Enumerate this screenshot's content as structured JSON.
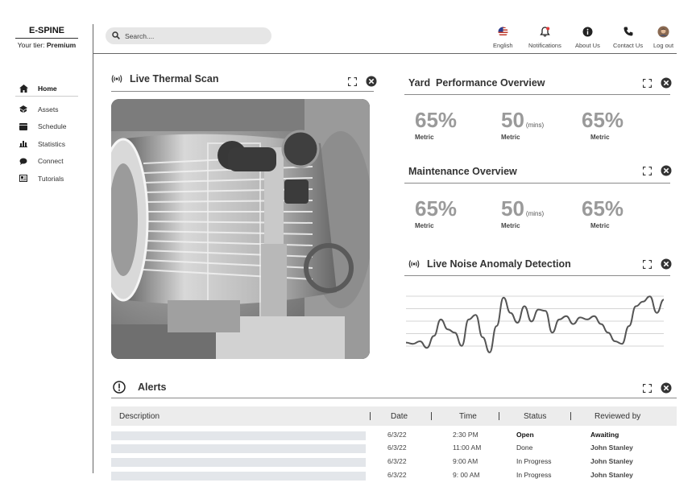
{
  "brand": {
    "name": "E-SPINE",
    "tier_prefix": "Your tier: ",
    "tier": "Premium"
  },
  "sidebar": {
    "items": [
      {
        "label": "Home",
        "icon": "home-icon"
      },
      {
        "label": "Assets",
        "icon": "assets-icon"
      },
      {
        "label": "Schedule",
        "icon": "calendar-icon"
      },
      {
        "label": "Statistics",
        "icon": "bar-chart-icon"
      },
      {
        "label": "Connect",
        "icon": "chat-icon"
      },
      {
        "label": "Tutorials",
        "icon": "tutorials-icon"
      }
    ]
  },
  "search": {
    "placeholder": "Search...."
  },
  "top_nav": [
    {
      "label": "English",
      "icon": "us-flag-icon"
    },
    {
      "label": "Notifications",
      "icon": "bell-icon"
    },
    {
      "label": "About Us",
      "icon": "info-icon"
    },
    {
      "label": "Contact Us",
      "icon": "phone-icon"
    },
    {
      "label": "Log out",
      "icon": "avatar"
    }
  ],
  "thermal": {
    "title": "Live Thermal Scan"
  },
  "yard": {
    "title": "Yard  Performance Overview",
    "metrics": [
      {
        "value": "65%",
        "unit": "",
        "label": "Metric"
      },
      {
        "value": "50",
        "unit": "(mins)",
        "label": "Metric"
      },
      {
        "value": "65%",
        "unit": "",
        "label": "Metric"
      }
    ]
  },
  "maintenance": {
    "title": "Maintenance Overview",
    "metrics": [
      {
        "value": "65%",
        "unit": "",
        "label": "Metric"
      },
      {
        "value": "50",
        "unit": "(mins)",
        "label": "Metric"
      },
      {
        "value": "65%",
        "unit": "",
        "label": "Metric"
      }
    ]
  },
  "noise": {
    "title": "Live Noise Anomaly Detection",
    "signal": [
      0.2,
      0.18,
      0.22,
      0.12,
      0.3,
      0.55,
      0.4,
      0.35,
      0.15,
      0.55,
      0.62,
      0.28,
      0.05,
      0.45,
      0.88,
      0.65,
      0.5,
      0.75,
      0.52,
      0.7,
      0.68,
      0.35,
      0.55,
      0.6,
      0.48,
      0.58,
      0.55,
      0.6,
      0.48,
      0.35,
      0.22,
      0.18,
      0.45,
      0.75,
      0.82,
      0.9,
      0.65,
      0.85
    ]
  },
  "alerts": {
    "title": "Alerts",
    "columns": [
      "Description",
      "Date",
      "Time",
      "Status",
      "Reviewed by"
    ],
    "rows": [
      {
        "date": "6/3/22",
        "time": "2:30 PM",
        "status": "Open",
        "reviewer": "Awaiting"
      },
      {
        "date": "6/3/22",
        "time": "11:00 AM",
        "status": "Done",
        "reviewer": "John Stanley"
      },
      {
        "date": "6/3/22",
        "time": "9:00 AM",
        "status": "In Progress",
        "reviewer": "John Stanley"
      },
      {
        "date": "6/3/22",
        "time": "9: 00 AM",
        "status": "In Progress",
        "reviewer": "John Stanley"
      }
    ]
  },
  "colors": {
    "accent": "#333333",
    "metric_value": "#9a9a9a",
    "table_header": "#ececec",
    "desc_placeholder": "#e3e6ea"
  }
}
